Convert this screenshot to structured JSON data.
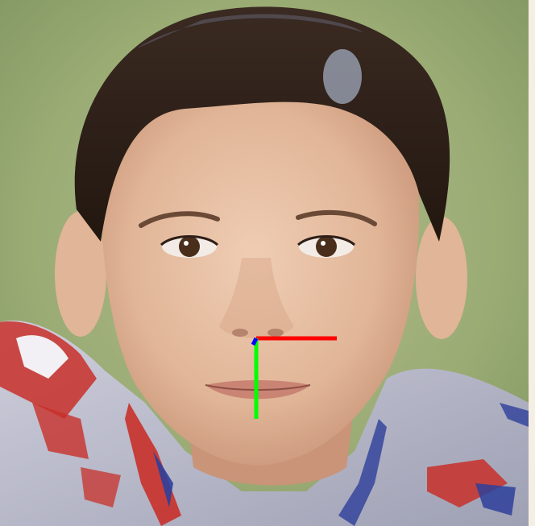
{
  "image": {
    "subject": "portrait",
    "palette": {
      "background": "#9aab74",
      "background_dark": "#7e9460",
      "background_light": "#b3bd8c",
      "right_strip": "#f4efe2",
      "skin": "#e1b597",
      "skin_shadow": "#c99478",
      "skin_highlight": "#efcdb4",
      "hair": "#3a2a22",
      "hair_dark": "#22170f",
      "eye": "#4a2e1c",
      "lip": "#c98474",
      "shirt": "#cfcfdc",
      "shirt_shadow": "#9ea0b4",
      "print_red": "#c8302a",
      "print_blue": "#2e3f9a"
    }
  },
  "overlay": {
    "axes": [
      {
        "name": "x-axis",
        "color": "#ff0000"
      },
      {
        "name": "y-axis",
        "color": "#00ff00"
      },
      {
        "name": "z-axis",
        "color": "#0000ff"
      }
    ]
  }
}
